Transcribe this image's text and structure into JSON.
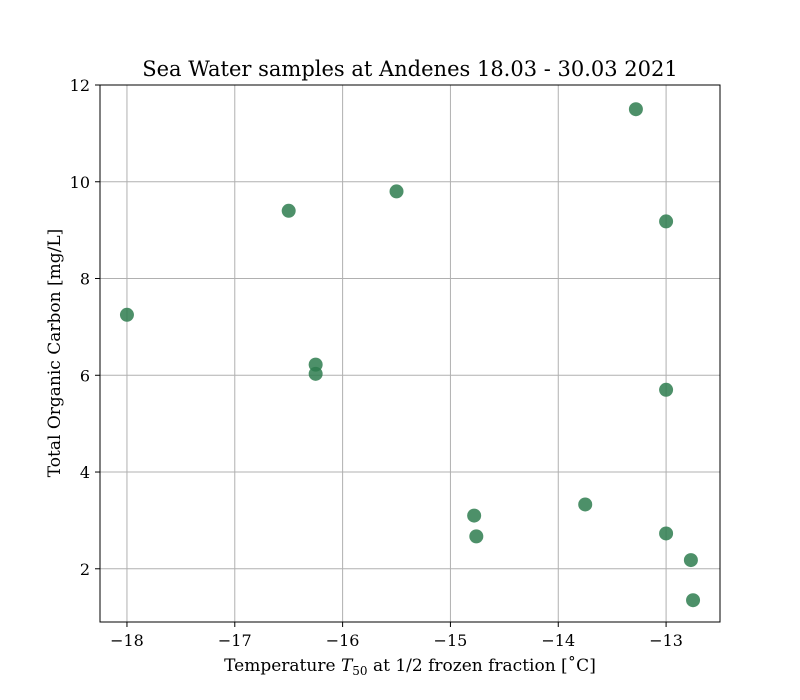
{
  "chart_data": {
    "type": "scatter",
    "title": "Sea Water samples at Andenes 18.03 - 30.03 2021",
    "xlabel": {
      "prefix": "Temperature ",
      "var": "T",
      "sub": "50",
      "suffix": " at 1/2 frozen fraction [˚C]"
    },
    "ylabel": "Total Organic Carbon [mg/L]",
    "xlim": [
      -18.25,
      -12.5
    ],
    "ylim": [
      0.9,
      12.0
    ],
    "xticks": [
      -18,
      -17,
      -16,
      -15,
      -14,
      -13
    ],
    "xtick_labels": [
      "−18",
      "−17",
      "−16",
      "−15",
      "−14",
      "−13"
    ],
    "yticks": [
      2,
      4,
      6,
      8,
      10,
      12
    ],
    "ytick_labels": [
      "2",
      "4",
      "6",
      "8",
      "10",
      "12"
    ],
    "grid": true,
    "marker_color": "#2e7d4f",
    "points": [
      {
        "x": -18.0,
        "y": 7.25
      },
      {
        "x": -16.5,
        "y": 9.4
      },
      {
        "x": -16.25,
        "y": 6.22
      },
      {
        "x": -16.25,
        "y": 6.03
      },
      {
        "x": -15.5,
        "y": 9.8
      },
      {
        "x": -14.78,
        "y": 3.1
      },
      {
        "x": -14.76,
        "y": 2.67
      },
      {
        "x": -13.75,
        "y": 3.33
      },
      {
        "x": -13.28,
        "y": 11.5
      },
      {
        "x": -13.0,
        "y": 9.18
      },
      {
        "x": -13.0,
        "y": 5.7
      },
      {
        "x": -13.0,
        "y": 2.73
      },
      {
        "x": -12.77,
        "y": 2.18
      },
      {
        "x": -12.75,
        "y": 1.35
      }
    ]
  }
}
